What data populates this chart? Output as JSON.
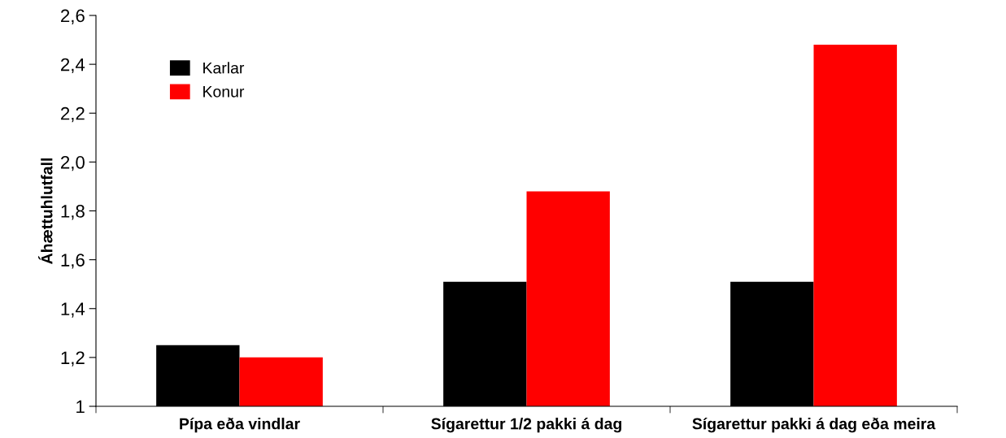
{
  "chart_data": {
    "type": "bar",
    "ylabel": "Áhættuhlutfall",
    "categories": [
      "Pípa eða vindlar",
      "Sígarettur 1/2 pakki á dag",
      "Sígarettur pakki á dag eða meira"
    ],
    "series": [
      {
        "name": "Karlar",
        "color": "#000000",
        "values": [
          1.25,
          1.51,
          1.51
        ]
      },
      {
        "name": "Konur",
        "color": "#ff0000",
        "values": [
          1.2,
          1.88,
          2.48
        ]
      }
    ],
    "ylim": [
      1,
      2.6
    ],
    "yticks": [
      1,
      {
        "value": 1.2,
        "label": "1,2"
      },
      {
        "value": 1.4,
        "label": "1,4"
      },
      {
        "value": 1.6,
        "label": "1,6"
      },
      {
        "value": 1.8,
        "label": "1,8"
      },
      {
        "value": 2.0,
        "label": "2,0"
      },
      {
        "value": 2.2,
        "label": "2,2"
      },
      {
        "value": 2.4,
        "label": "2,4"
      },
      {
        "value": 2.6,
        "label": "2,6"
      }
    ],
    "grid": false,
    "legend": "top left"
  }
}
